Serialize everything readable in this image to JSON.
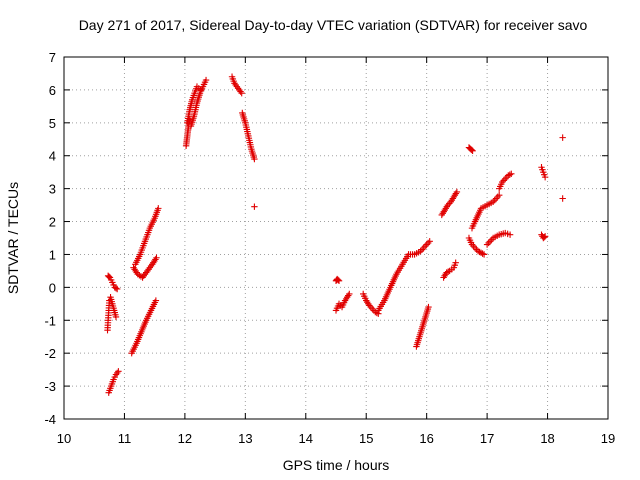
{
  "chart_data": {
    "type": "scatter",
    "title": "Day 271 of 2017, Sidereal Day-to-day VTEC variation (SDTVAR) for receiver savo",
    "xlabel": "GPS time / hours",
    "ylabel": "SDTVAR / TECUs",
    "xlim": [
      10,
      19
    ],
    "ylim": [
      -4,
      7
    ],
    "xticks": [
      "10",
      "11",
      "12",
      "13",
      "14",
      "15",
      "16",
      "17",
      "18",
      "19"
    ],
    "yticks": [
      "-4",
      "-3",
      "-2",
      "-1",
      "0",
      "1",
      "2",
      "3",
      "4",
      "5",
      "6",
      "7"
    ],
    "grid": true,
    "marker": "plus",
    "series_color": "#e00000",
    "segments": [
      {
        "x": [
          10.72,
          10.73,
          10.74,
          10.75
        ],
        "y": [
          -1.3,
          -1.0,
          -0.7,
          -0.4
        ]
      },
      {
        "x": [
          10.73,
          10.76,
          10.8,
          10.84,
          10.88
        ],
        "y": [
          0.35,
          0.3,
          0.15,
          0.0,
          -0.05
        ]
      },
      {
        "x": [
          10.77,
          10.8,
          10.83,
          10.86
        ],
        "y": [
          -0.3,
          -0.5,
          -0.7,
          -0.9
        ]
      },
      {
        "x": [
          10.74,
          10.78,
          10.82,
          10.86,
          10.9
        ],
        "y": [
          -3.2,
          -3.0,
          -2.8,
          -2.65,
          -2.55
        ]
      },
      {
        "x": [
          11.12,
          11.2,
          11.28,
          11.36,
          11.44,
          11.52
        ],
        "y": [
          -2.0,
          -1.7,
          -1.35,
          -1.0,
          -0.7,
          -0.4
        ]
      },
      {
        "x": [
          11.15,
          11.22,
          11.3,
          11.38,
          11.46,
          11.53
        ],
        "y": [
          0.6,
          0.4,
          0.3,
          0.5,
          0.7,
          0.9
        ]
      },
      {
        "x": [
          11.18,
          11.26,
          11.34,
          11.42,
          11.5,
          11.56
        ],
        "y": [
          0.7,
          1.0,
          1.4,
          1.8,
          2.1,
          2.4
        ]
      },
      {
        "x": [
          12.02,
          12.04,
          12.06,
          12.08
        ],
        "y": [
          4.3,
          4.6,
          4.9,
          5.1
        ]
      },
      {
        "x": [
          12.04,
          12.08,
          12.12,
          12.16,
          12.2,
          12.26
        ],
        "y": [
          5.0,
          5.4,
          5.7,
          5.9,
          6.1,
          6.0
        ]
      },
      {
        "x": [
          12.1,
          12.15,
          12.2,
          12.25,
          12.3,
          12.35
        ],
        "y": [
          4.9,
          5.2,
          5.6,
          5.9,
          6.1,
          6.3
        ]
      },
      {
        "x": [
          12.78,
          12.82,
          12.86,
          12.9,
          12.94
        ],
        "y": [
          6.4,
          6.2,
          6.1,
          6.0,
          5.9
        ]
      },
      {
        "x": [
          12.95,
          13.0,
          13.05,
          13.1,
          13.15
        ],
        "y": [
          5.3,
          5.0,
          4.6,
          4.2,
          3.9
        ]
      },
      {
        "x": [
          13.15
        ],
        "y": [
          2.45
        ]
      },
      {
        "x": [
          14.5,
          14.52,
          14.55
        ],
        "y": [
          0.2,
          0.25,
          0.2
        ]
      },
      {
        "x": [
          14.5,
          14.55,
          14.6,
          14.65,
          14.72
        ],
        "y": [
          -0.7,
          -0.5,
          -0.6,
          -0.4,
          -0.2
        ]
      },
      {
        "x": [
          14.95,
          15.0,
          15.05,
          15.1,
          15.15,
          15.2
        ],
        "y": [
          -0.2,
          -0.4,
          -0.55,
          -0.65,
          -0.75,
          -0.8
        ]
      },
      {
        "x": [
          15.2,
          15.3,
          15.4,
          15.5,
          15.6,
          15.7
        ],
        "y": [
          -0.7,
          -0.4,
          0.0,
          0.4,
          0.7,
          1.0
        ]
      },
      {
        "x": [
          15.7,
          15.8,
          15.9,
          16.0,
          16.05
        ],
        "y": [
          1.0,
          1.0,
          1.1,
          1.3,
          1.4
        ]
      },
      {
        "x": [
          15.83,
          15.88,
          15.93,
          15.98,
          16.03
        ],
        "y": [
          -1.8,
          -1.5,
          -1.2,
          -0.9,
          -0.6
        ]
      },
      {
        "x": [
          16.25,
          16.3,
          16.35,
          16.4,
          16.45,
          16.5
        ],
        "y": [
          2.2,
          2.35,
          2.5,
          2.6,
          2.75,
          2.9
        ]
      },
      {
        "x": [
          16.28,
          16.33,
          16.38,
          16.45,
          16.48
        ],
        "y": [
          0.3,
          0.45,
          0.5,
          0.6,
          0.75
        ]
      },
      {
        "x": [
          16.7,
          16.73,
          16.76
        ],
        "y": [
          4.25,
          4.2,
          4.15
        ]
      },
      {
        "x": [
          16.7,
          16.75,
          16.8,
          16.85,
          16.9,
          16.95
        ],
        "y": [
          1.5,
          1.3,
          1.2,
          1.1,
          1.05,
          1.0
        ]
      },
      {
        "x": [
          16.75,
          16.8,
          16.9,
          17.0,
          17.1,
          17.2
        ],
        "y": [
          1.8,
          2.0,
          2.4,
          2.5,
          2.6,
          2.8
        ]
      },
      {
        "x": [
          17.0,
          17.1,
          17.2,
          17.3,
          17.38
        ],
        "y": [
          1.3,
          1.5,
          1.6,
          1.65,
          1.6
        ]
      },
      {
        "x": [
          17.2,
          17.25,
          17.3,
          17.35,
          17.4
        ],
        "y": [
          3.0,
          3.2,
          3.3,
          3.4,
          3.45
        ]
      },
      {
        "x": [
          17.9,
          17.93,
          17.96
        ],
        "y": [
          3.65,
          3.5,
          3.35
        ]
      },
      {
        "x": [
          17.9,
          17.93,
          17.96
        ],
        "y": [
          1.6,
          1.5,
          1.55
        ]
      },
      {
        "x": [
          18.25
        ],
        "y": [
          4.55
        ]
      },
      {
        "x": [
          18.25
        ],
        "y": [
          2.7
        ]
      }
    ]
  }
}
